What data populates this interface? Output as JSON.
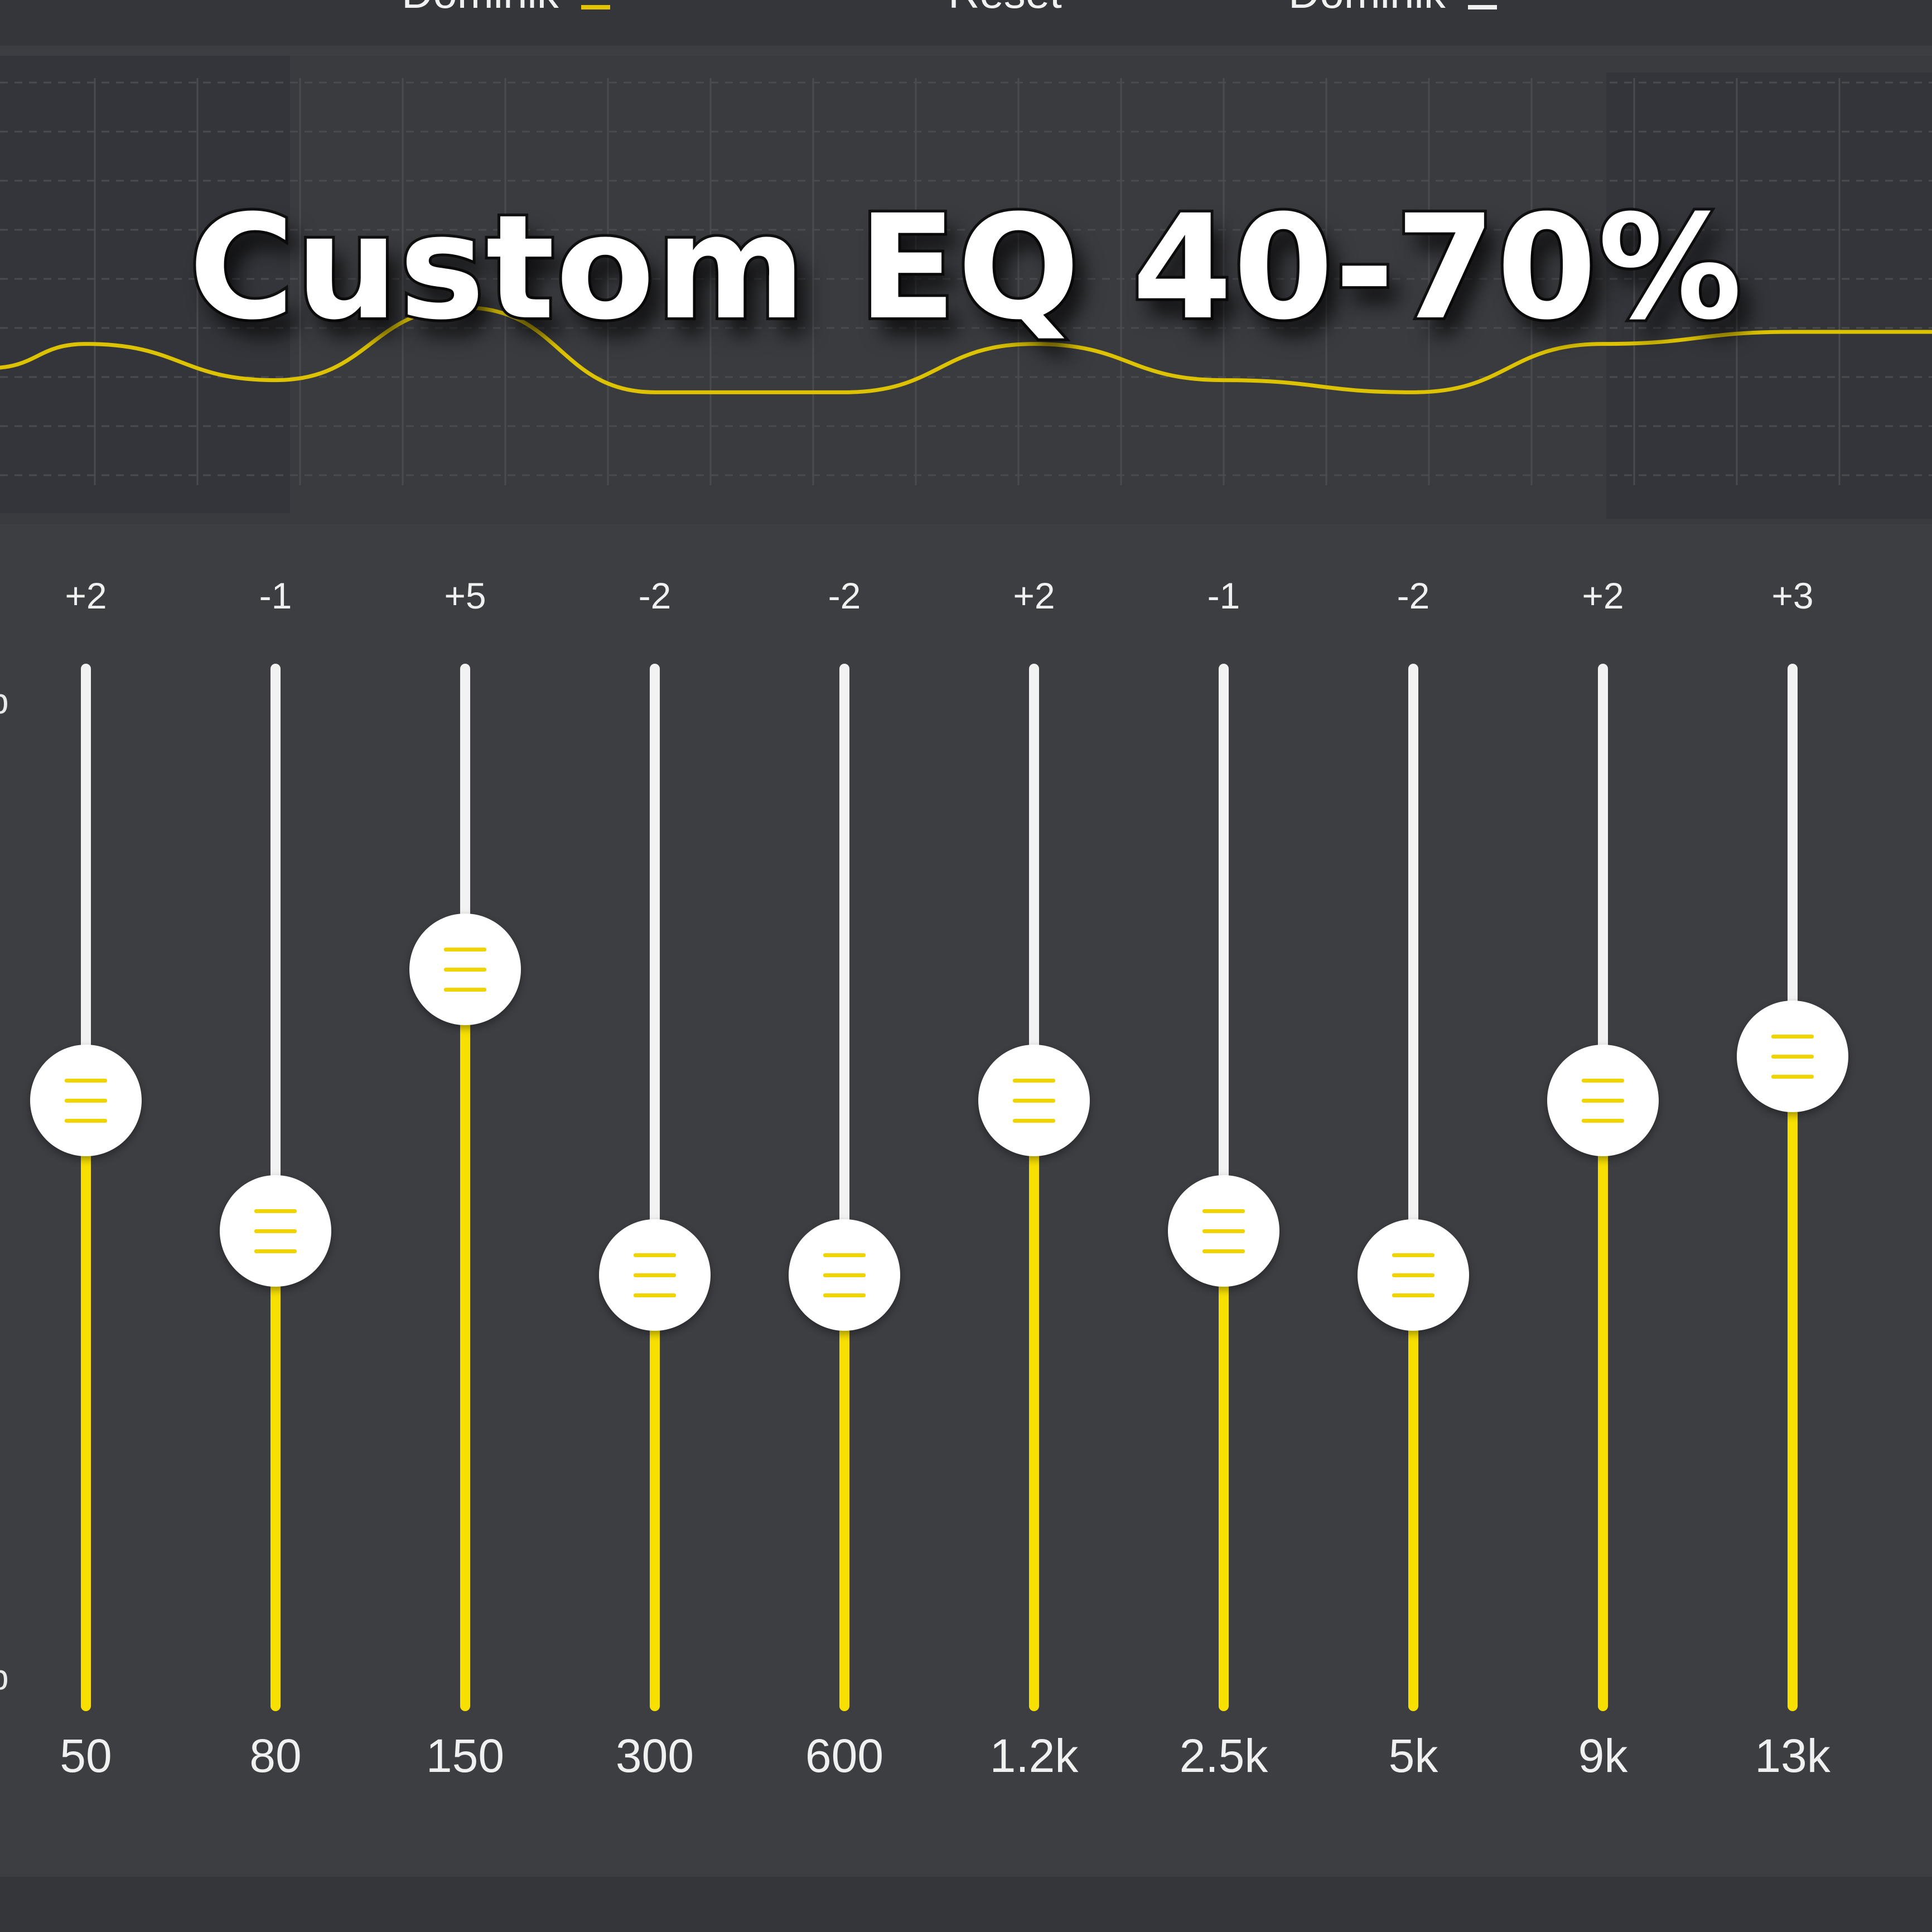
{
  "top_bar": {
    "left_preset": "Dominik",
    "reset_label": "Reset",
    "right_preset": "Dominik"
  },
  "overlay_title": "Custom EQ 40-70%",
  "scale": {
    "top_label": "b",
    "bottom_label": "b"
  },
  "eq": {
    "range_db": [
      -12,
      12
    ],
    "accent_color": "#f7e000",
    "bands": [
      {
        "freq": "50",
        "value_label": "+2",
        "gain": 2
      },
      {
        "freq": "80",
        "value_label": "-1",
        "gain": -1
      },
      {
        "freq": "150",
        "value_label": "+5",
        "gain": 5
      },
      {
        "freq": "300",
        "value_label": "-2",
        "gain": -2
      },
      {
        "freq": "600",
        "value_label": "-2",
        "gain": -2
      },
      {
        "freq": "1.2k",
        "value_label": "+2",
        "gain": 2
      },
      {
        "freq": "2.5k",
        "value_label": "-1",
        "gain": -1
      },
      {
        "freq": "5k",
        "value_label": "-2",
        "gain": -2
      },
      {
        "freq": "9k",
        "value_label": "+2",
        "gain": 2
      },
      {
        "freq": "13k",
        "value_label": "+3",
        "gain": 3
      }
    ]
  }
}
